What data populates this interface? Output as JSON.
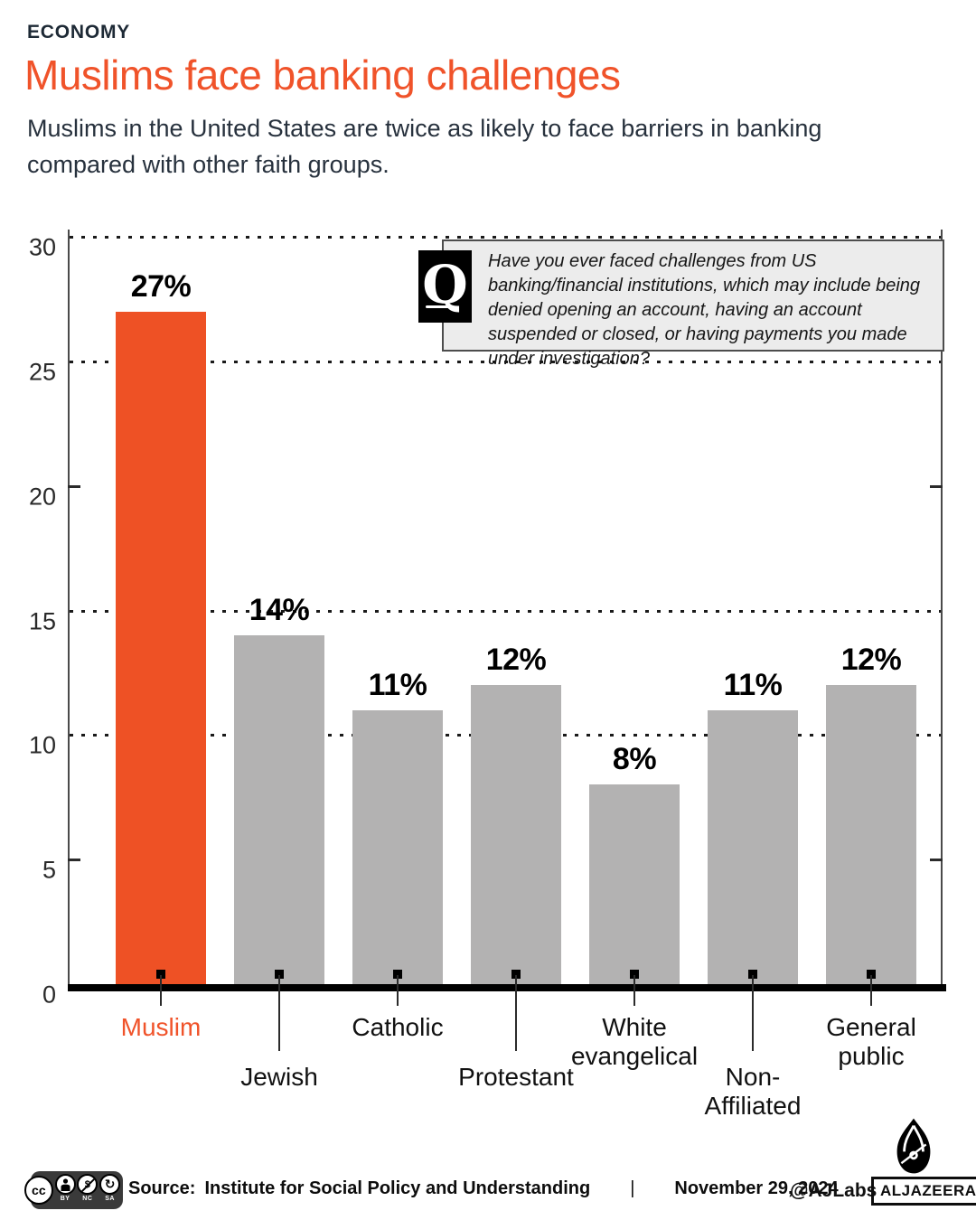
{
  "header": {
    "kicker": "ECONOMY",
    "title": "Muslims face banking challenges",
    "subtitle_line1": "Muslims in the United States are twice as likely to face barriers in banking",
    "subtitle_line2": "compared with other faith groups."
  },
  "question": {
    "icon_letter": "Q",
    "text": "Have you ever faced challenges from US banking/financial institutions, which may include being denied opening an account, having an account suspended or closed, or having payments you made under investigation?"
  },
  "chart_data": {
    "type": "bar",
    "categories": [
      "Muslim",
      "Jewish",
      "Catholic",
      "Protestant",
      "White\nevangelical",
      "Non-\nAffiliated",
      "General\npublic"
    ],
    "values": [
      27,
      14,
      11,
      12,
      8,
      11,
      12
    ],
    "value_labels": [
      "27%",
      "14%",
      "11%",
      "12%",
      "8%",
      "11%",
      "12%"
    ],
    "label_row": [
      "high",
      "low",
      "high",
      "low",
      "high",
      "low",
      "high"
    ],
    "highlight_index": 0,
    "highlight_color": "#ee5125",
    "bar_color": "#b3b2b2",
    "ylim": [
      0,
      30
    ],
    "yticks_dotted": [
      30,
      25,
      15,
      10
    ],
    "yticks_plain": [
      20,
      5
    ],
    "ytick_labels": [
      30,
      25,
      20,
      15,
      10,
      5,
      0
    ],
    "grid": "horizontal dotted",
    "legend": "none"
  },
  "footer": {
    "cc_label": "cc",
    "nc_symbol": "$",
    "sa_symbol": "↻",
    "license_labels": [
      "BY",
      "NC",
      "SA"
    ],
    "source_label": "Source:",
    "source": "Institute for Social Policy and Understanding",
    "separator": "|",
    "date": "November 29, 2024",
    "credit": "@AJLabs",
    "brand": "ALJAZEERA"
  }
}
